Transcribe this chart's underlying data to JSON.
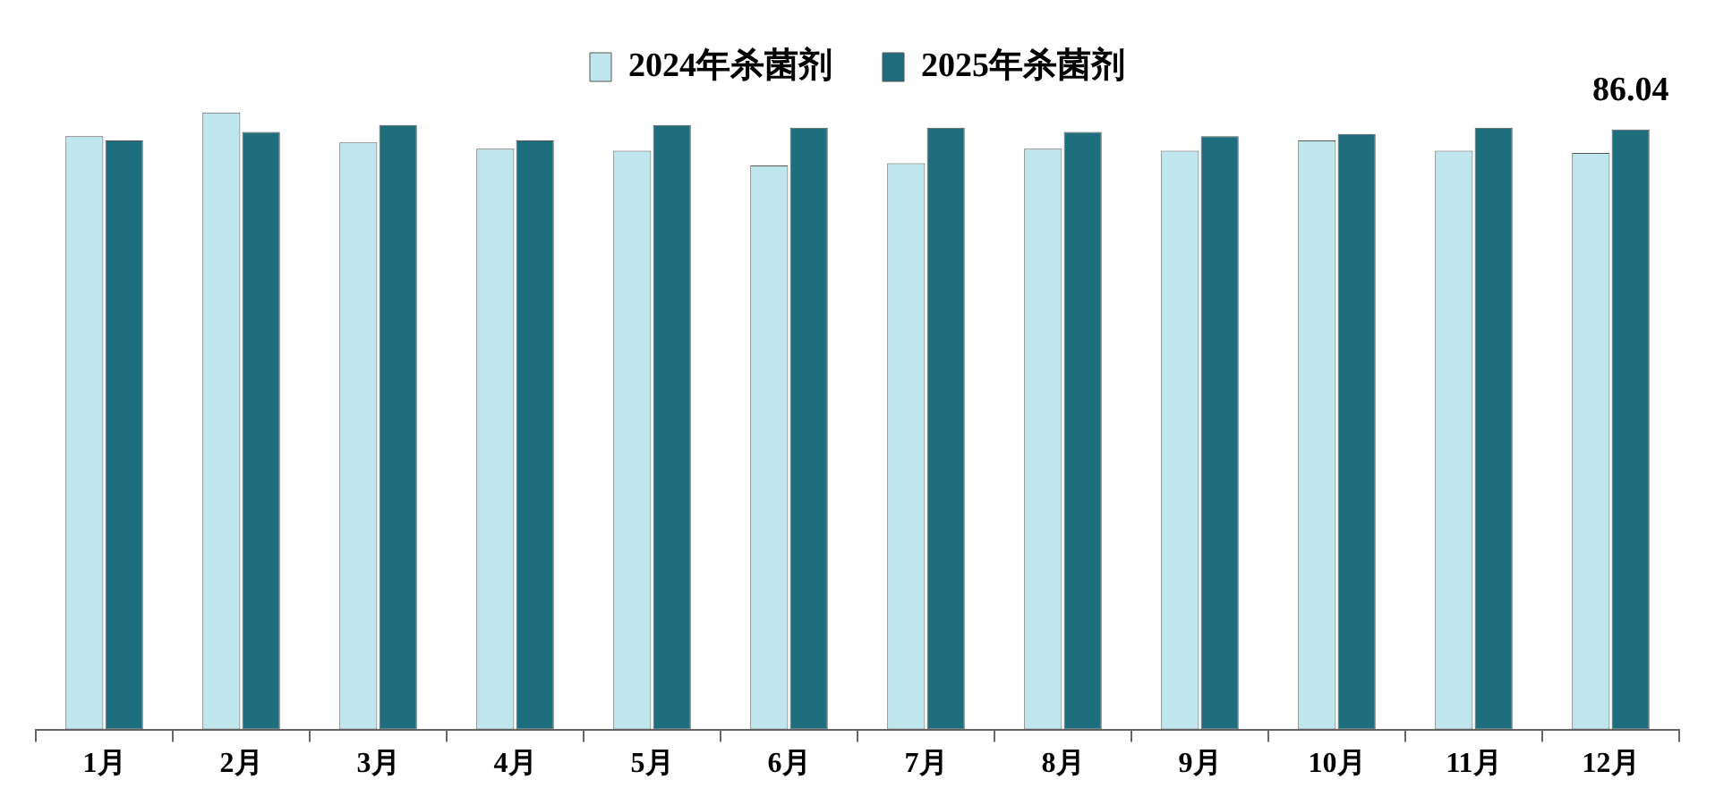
{
  "chart_data": {
    "type": "bar",
    "categories": [
      "1月",
      "2月",
      "3月",
      "4月",
      "5月",
      "6月",
      "7月",
      "8月",
      "9月",
      "10月",
      "11月",
      "12月"
    ],
    "series": [
      {
        "name": "2024年杀菌剂",
        "color": "#bfe6ec",
        "values": [
          85.1,
          88.5,
          84.2,
          83.3,
          83.0,
          80.9,
          81.2,
          83.3,
          83.0,
          84.5,
          83.0,
          82.7
        ]
      },
      {
        "name": "2025年杀菌剂",
        "color": "#1f6e7e",
        "values": [
          84.5,
          85.7,
          86.7,
          84.5,
          86.7,
          86.3,
          86.3,
          85.7,
          85.1,
          85.4,
          86.3,
          86.04
        ],
        "value_labels": [
          null,
          null,
          null,
          null,
          null,
          null,
          null,
          null,
          null,
          null,
          null,
          "86.04"
        ]
      }
    ],
    "legend": "top",
    "tick_labels": "x"
  }
}
